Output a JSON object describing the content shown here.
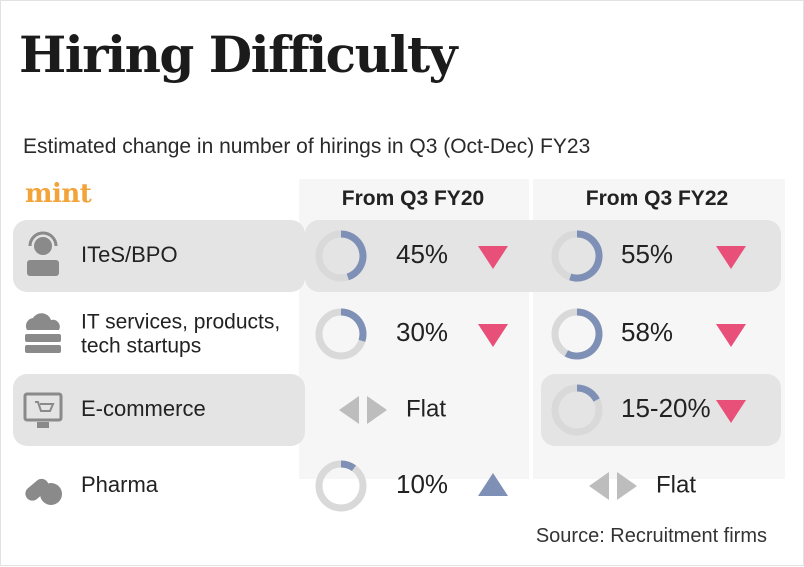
{
  "title": "Hiring Difficulty",
  "subtitle": "Estimated change in number of hirings in Q3 (Oct-Dec) FY23",
  "logo": "mint",
  "source": "Source: Recruitment firms",
  "colors": {
    "highlight_row": "#e4e4e4",
    "ring_track": "#d9d9d9",
    "ring_fill": "#7f90b6",
    "down": "#e8507a",
    "up": "#7f90b6",
    "flat": "#bdbdbd",
    "icon": "#8a8a8a"
  },
  "chart_data": {
    "type": "table",
    "title": "Hiring Difficulty",
    "subtitle": "Estimated change in number of hirings in Q3 (Oct-Dec) FY23",
    "columns": [
      "From Q3 FY20",
      "From Q3 FY22"
    ],
    "rows": [
      {
        "sector": "ITeS/BPO",
        "icon": "headset-person-icon",
        "cells": [
          {
            "label": "45%",
            "value": 45,
            "direction": "down"
          },
          {
            "label": "55%",
            "value": 55,
            "direction": "down"
          }
        ]
      },
      {
        "sector": "IT services, products, tech startups",
        "label_lines": [
          "IT services, products,",
          "tech startups"
        ],
        "icon": "cloud-server-icon",
        "cells": [
          {
            "label": "30%",
            "value": 30,
            "direction": "down"
          },
          {
            "label": "58%",
            "value": 58,
            "direction": "down"
          }
        ]
      },
      {
        "sector": "E-commerce",
        "icon": "monitor-cart-icon",
        "cells": [
          {
            "label": "Flat",
            "value": null,
            "direction": "flat"
          },
          {
            "label": "15-20%",
            "value": 17.5,
            "direction": "down"
          }
        ]
      },
      {
        "sector": "Pharma",
        "icon": "pill-capsule-icon",
        "cells": [
          {
            "label": "10%",
            "value": 10,
            "direction": "up"
          },
          {
            "label": "Flat",
            "value": null,
            "direction": "flat"
          }
        ]
      }
    ]
  }
}
